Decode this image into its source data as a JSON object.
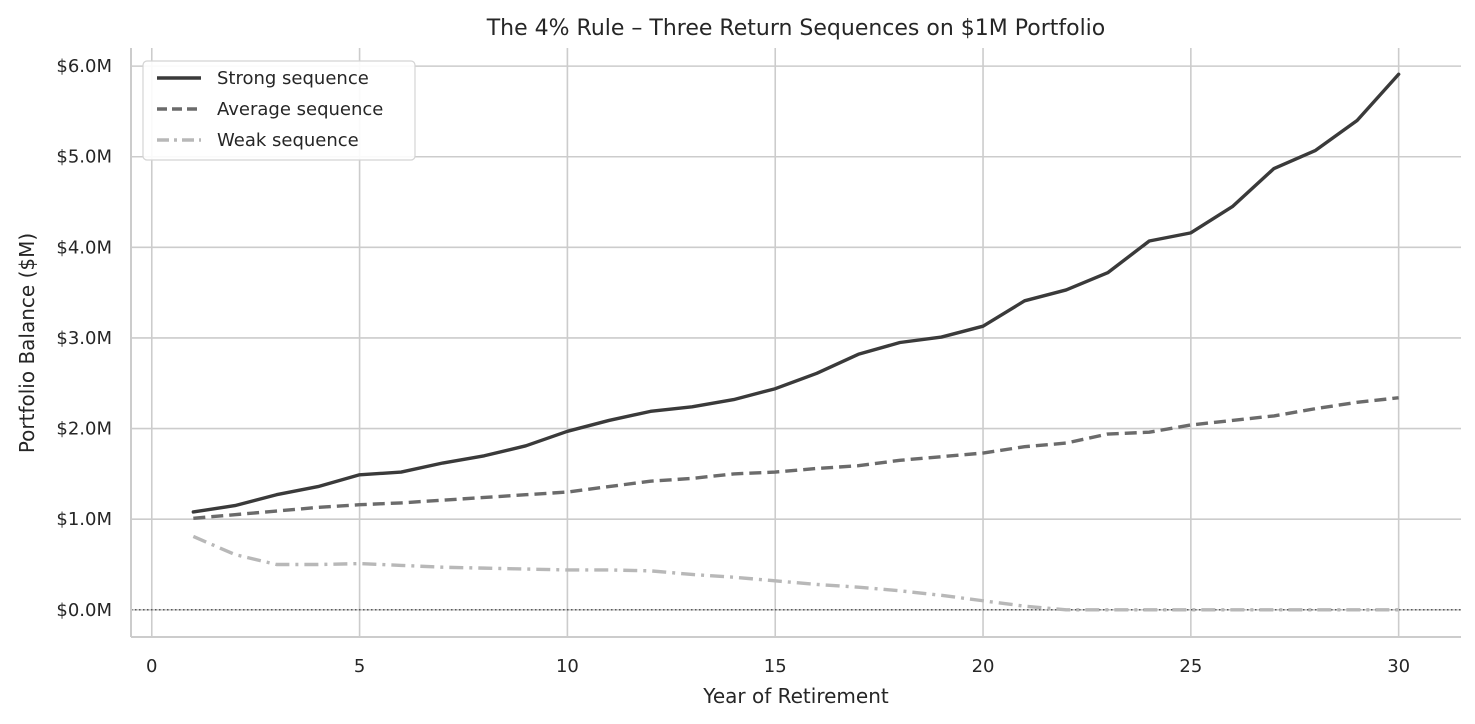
{
  "chart_data": {
    "type": "line",
    "title": "The 4% Rule – Three Return Sequences on $1M Portfolio",
    "xlabel": "Year of Retirement",
    "ylabel": "Portfolio Balance ($M)",
    "xlim": [
      -0.5,
      31.5
    ],
    "ylim": [
      -0.3,
      6.2
    ],
    "x_ticks": [
      0,
      5,
      10,
      15,
      20,
      25,
      30
    ],
    "x_tick_labels": [
      "0",
      "5",
      "10",
      "15",
      "20",
      "25",
      "30"
    ],
    "y_ticks": [
      0,
      1,
      2,
      3,
      4,
      5,
      6
    ],
    "y_tick_labels": [
      "$0.0M",
      "$1.0M",
      "$2.0M",
      "$3.0M",
      "$4.0M",
      "$5.0M",
      "$6.0M"
    ],
    "grid": true,
    "legend_position": "top-left",
    "reference_line": {
      "y": 0,
      "style": "dotted",
      "color": "#333333"
    },
    "x": [
      1,
      2,
      3,
      4,
      5,
      6,
      7,
      8,
      9,
      10,
      11,
      12,
      13,
      14,
      15,
      16,
      17,
      18,
      19,
      20,
      21,
      22,
      23,
      24,
      25,
      26,
      27,
      28,
      29,
      30
    ],
    "series": [
      {
        "name": "Strong sequence",
        "color": "#3a3a3a",
        "style": "solid",
        "values": [
          1.08,
          1.15,
          1.27,
          1.36,
          1.49,
          1.52,
          1.62,
          1.7,
          1.81,
          1.97,
          2.09,
          2.19,
          2.24,
          2.32,
          2.44,
          2.61,
          2.82,
          2.95,
          3.01,
          3.13,
          3.41,
          3.53,
          3.72,
          4.07,
          4.16,
          4.45,
          4.87,
          5.07,
          5.4,
          5.91
        ]
      },
      {
        "name": "Average sequence",
        "color": "#6b6b6b",
        "style": "dashed",
        "values": [
          1.01,
          1.05,
          1.09,
          1.13,
          1.16,
          1.18,
          1.21,
          1.24,
          1.27,
          1.3,
          1.36,
          1.42,
          1.45,
          1.5,
          1.52,
          1.56,
          1.59,
          1.65,
          1.69,
          1.73,
          1.8,
          1.84,
          1.94,
          1.96,
          2.04,
          2.09,
          2.14,
          2.22,
          2.29,
          2.34
        ]
      },
      {
        "name": "Weak sequence",
        "color": "#b8b8b8",
        "style": "dashdot",
        "values": [
          0.81,
          0.61,
          0.5,
          0.5,
          0.51,
          0.49,
          0.47,
          0.46,
          0.45,
          0.44,
          0.44,
          0.43,
          0.39,
          0.36,
          0.32,
          0.28,
          0.25,
          0.21,
          0.16,
          0.1,
          0.04,
          0.0,
          0.0,
          0.0,
          0.0,
          0.0,
          0.0,
          0.0,
          0.0,
          0.0
        ]
      }
    ]
  }
}
